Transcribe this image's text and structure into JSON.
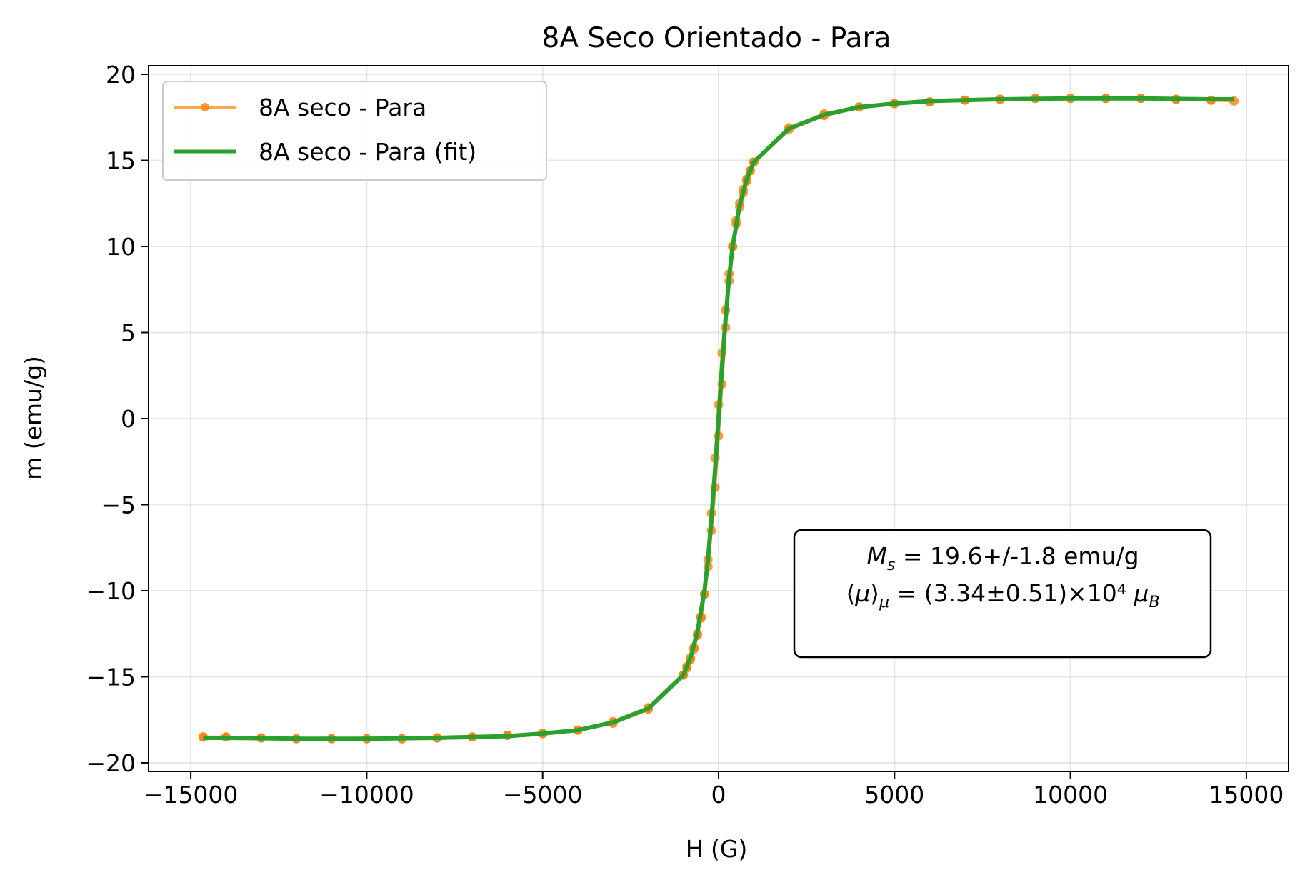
{
  "chart_data": {
    "type": "line",
    "title": "8A Seco Orientado - Para",
    "xlabel": "H (G)",
    "ylabel": "m (emu/g)",
    "xlim": [
      -16200,
      16200
    ],
    "ylim": [
      -20.5,
      20.5
    ],
    "xticks": [
      -15000,
      -10000,
      -5000,
      0,
      5000,
      10000,
      15000
    ],
    "xtick_labels": [
      "−15000",
      "−10000",
      "−5000",
      "0",
      "5000",
      "10000",
      "15000"
    ],
    "yticks": [
      -20,
      -15,
      -10,
      -5,
      0,
      5,
      10,
      15,
      20
    ],
    "ytick_labels": [
      "−20",
      "−15",
      "−10",
      "−5",
      "0",
      "5",
      "10",
      "15",
      "20"
    ],
    "grid": true,
    "legend_position": "upper-left",
    "series": [
      {
        "name": "8A seco - Para",
        "style": "line-markers",
        "color": "#ff7f0e",
        "x": [
          -14650,
          -14000,
          -13000,
          -12000,
          -11000,
          -10000,
          -9000,
          -8000,
          -7000,
          -6000,
          -5000,
          -4000,
          -3000,
          -2000,
          -1000,
          -900,
          -800,
          -700,
          -600,
          -500,
          -400,
          -300,
          -200,
          -100,
          0,
          100,
          200,
          300,
          400,
          500,
          600,
          700,
          800,
          900,
          1000,
          2000,
          3000,
          4000,
          5000,
          6000,
          7000,
          8000,
          9000,
          10000,
          11000,
          12000,
          13000,
          14000,
          14650,
          14000,
          13000,
          12000,
          11000,
          10000,
          9000,
          8000,
          7000,
          6000,
          5000,
          4000,
          3000,
          2000,
          1000,
          900,
          800,
          700,
          600,
          500,
          400,
          300,
          200,
          100,
          0,
          -100,
          -200,
          -300,
          -400,
          -500,
          -600,
          -700,
          -800,
          -900,
          -1000,
          -2000,
          -3000,
          -4000,
          -5000,
          -6000,
          -7000,
          -8000,
          -9000,
          -10000,
          -11000,
          -12000,
          -13000,
          -14000,
          -14650
        ],
        "y": [
          -18.5,
          -18.5,
          -18.55,
          -18.6,
          -18.6,
          -18.6,
          -18.6,
          -18.55,
          -18.5,
          -18.4,
          -18.3,
          -18.1,
          -17.6,
          -16.8,
          -14.9,
          -14.5,
          -14.0,
          -13.4,
          -12.6,
          -11.6,
          -10.2,
          -8.2,
          -5.5,
          -2.3,
          0.8,
          3.8,
          6.3,
          8.4,
          10.0,
          11.3,
          12.3,
          13.1,
          13.8,
          14.4,
          14.9,
          16.9,
          17.7,
          18.1,
          18.3,
          18.4,
          18.5,
          18.55,
          18.6,
          18.6,
          18.6,
          18.6,
          18.55,
          18.5,
          18.45,
          18.5,
          18.55,
          18.6,
          18.6,
          18.6,
          18.6,
          18.55,
          18.5,
          18.4,
          18.3,
          18.1,
          17.6,
          16.8,
          14.9,
          14.4,
          13.9,
          13.3,
          12.5,
          11.5,
          10.0,
          8.0,
          5.3,
          2.0,
          -1.0,
          -4.0,
          -6.5,
          -8.6,
          -10.2,
          -11.5,
          -12.5,
          -13.3,
          -13.9,
          -14.4,
          -14.9,
          -16.9,
          -17.7,
          -18.1,
          -18.3,
          -18.4,
          -18.5,
          -18.55,
          -18.6,
          -18.6,
          -18.6,
          -18.6,
          -18.55,
          -18.5,
          -18.5
        ]
      },
      {
        "name": "8A seco - Para (fit)",
        "style": "line",
        "color": "#2ca02c",
        "x": [
          -14650,
          -14000,
          -12000,
          -10000,
          -8000,
          -6000,
          -5000,
          -4000,
          -3000,
          -2000,
          -1000,
          -800,
          -600,
          -400,
          -300,
          -200,
          -100,
          0,
          100,
          200,
          300,
          400,
          600,
          800,
          1000,
          2000,
          3000,
          4000,
          5000,
          6000,
          8000,
          10000,
          12000,
          14000,
          14650
        ],
        "y": [
          -18.55,
          -18.55,
          -18.6,
          -18.6,
          -18.55,
          -18.45,
          -18.3,
          -18.1,
          -17.65,
          -16.85,
          -14.9,
          -13.9,
          -12.4,
          -10.0,
          -8.2,
          -5.8,
          -3.0,
          0.0,
          3.0,
          5.8,
          8.2,
          10.0,
          12.4,
          13.9,
          14.9,
          16.85,
          17.65,
          18.1,
          18.3,
          18.45,
          18.55,
          18.6,
          18.6,
          18.55,
          18.55
        ]
      }
    ],
    "annotation": {
      "line1_sym": "M",
      "line1_sub": "s",
      "line1_rest": " = 19.6+/-1.8 emu/g",
      "line2_open": "⟨",
      "line2_sym": "μ",
      "line2_close": "⟩",
      "line2_sub": "μ",
      "line2_rest": " = (3.34±0.51)×10⁴ ",
      "line2_unit": "μ",
      "line2_unit_sub": "B"
    }
  }
}
